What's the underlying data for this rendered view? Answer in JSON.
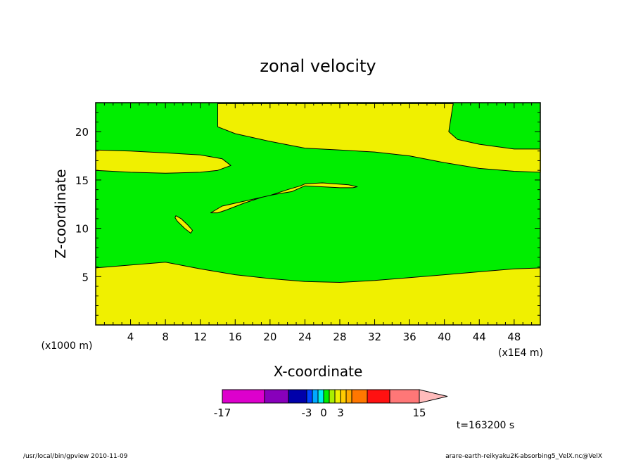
{
  "chart_data": {
    "type": "heatmap",
    "title": "zonal velocity",
    "xlabel": "X-coordinate",
    "ylabel": "Z-coordinate",
    "x_unit_note": "(x1E4 m)",
    "y_unit_note": "(x1000 m)",
    "xlim": [
      0,
      51
    ],
    "ylim": [
      0,
      23
    ],
    "x_ticks": [
      4,
      8,
      12,
      16,
      20,
      24,
      28,
      32,
      36,
      40,
      44,
      48
    ],
    "y_ticks": [
      5,
      10,
      15,
      20
    ],
    "colors": {
      "background_region": "#00ee00",
      "positive_region": "#f0f000",
      "frame": "#000000"
    },
    "regions": [
      {
        "region": "bottom-layer",
        "level": "0 to 3",
        "boundary": [
          [
            0,
            5.9
          ],
          [
            8,
            6.5
          ],
          [
            12,
            5.8
          ],
          [
            16,
            5.2
          ],
          [
            20,
            4.8
          ],
          [
            24,
            4.5
          ],
          [
            28,
            4.4
          ],
          [
            32,
            4.6
          ],
          [
            36,
            4.9
          ],
          [
            40,
            5.2
          ],
          [
            44,
            5.5
          ],
          [
            48,
            5.8
          ],
          [
            51,
            5.9
          ]
        ]
      },
      {
        "region": "left-band",
        "level": "0 to 3",
        "top": [
          [
            0,
            18.1
          ],
          [
            4,
            18.0
          ],
          [
            8,
            17.8
          ],
          [
            12,
            17.6
          ],
          [
            14.5,
            17.2
          ],
          [
            15.5,
            16.5
          ]
        ],
        "bottom": [
          [
            15.5,
            16.5
          ],
          [
            14,
            16.0
          ],
          [
            12,
            15.8
          ],
          [
            8,
            15.7
          ],
          [
            4,
            15.8
          ],
          [
            0,
            16.0
          ]
        ]
      },
      {
        "region": "top-right-layer",
        "boundary": [
          [
            14,
            22.9
          ],
          [
            14,
            20.5
          ],
          [
            16,
            19.8
          ],
          [
            20,
            19.0
          ],
          [
            24,
            18.3
          ],
          [
            28,
            18.1
          ],
          [
            32,
            17.9
          ],
          [
            36,
            17.5
          ],
          [
            40,
            16.8
          ],
          [
            44,
            16.2
          ],
          [
            48,
            15.9
          ],
          [
            51,
            15.8
          ],
          [
            51,
            18.2
          ],
          [
            48,
            18.2
          ],
          [
            44,
            18.7
          ],
          [
            41.5,
            19.2
          ],
          [
            40.5,
            20.0
          ],
          [
            41,
            22.9
          ]
        ]
      },
      {
        "region": "diagonal-streak",
        "boundary": [
          [
            13.2,
            11.6
          ],
          [
            14.5,
            12.3
          ],
          [
            17,
            12.8
          ],
          [
            20,
            13.4
          ],
          [
            22,
            14.0
          ],
          [
            23.5,
            14.4
          ],
          [
            24,
            14.6
          ],
          [
            26,
            14.7
          ],
          [
            29,
            14.5
          ],
          [
            30,
            14.3
          ],
          [
            29.5,
            14.2
          ],
          [
            28,
            14.2
          ],
          [
            24,
            14.4
          ],
          [
            22.5,
            13.8
          ],
          [
            20.5,
            13.5
          ],
          [
            19,
            13.2
          ],
          [
            17,
            12.6
          ],
          [
            15,
            11.9
          ],
          [
            14,
            11.6
          ]
        ]
      },
      {
        "region": "small-oval",
        "boundary": [
          [
            9.2,
            11.3
          ],
          [
            9.8,
            11.0
          ],
          [
            10.5,
            10.4
          ],
          [
            11.1,
            9.8
          ],
          [
            10.9,
            9.5
          ],
          [
            10.2,
            10.0
          ],
          [
            9.4,
            10.7
          ],
          [
            9.1,
            11.1
          ]
        ]
      }
    ],
    "colorbar": {
      "tick_labels": [
        "-17",
        "-3",
        "0",
        "3",
        "15"
      ],
      "segments": [
        {
          "color": "#dd00cc",
          "level": "-17 to -10"
        },
        {
          "color": "#8800bb",
          "level": "-10 to -6"
        },
        {
          "color": "#0000aa",
          "level": "-6 to -3"
        },
        {
          "color": "#0044ff",
          "level": "-3 to -2"
        },
        {
          "color": "#00aaff",
          "level": "-2 to -1"
        },
        {
          "color": "#00eeee",
          "level": "-1 to 0"
        },
        {
          "color": "#00ee00",
          "level": "0 to 1"
        },
        {
          "color": "#aaee00",
          "level": "1 to 2"
        },
        {
          "color": "#f0f000",
          "level": "2 to 3"
        },
        {
          "color": "#ffcc00",
          "level": "3 to 4"
        },
        {
          "color": "#ffaa00",
          "level": "4 to 5"
        },
        {
          "color": "#ff7700",
          "level": "5 to 7"
        },
        {
          "color": "#ff1111",
          "level": "7 to 10"
        },
        {
          "color": "#ff7777",
          "level": "10 to 15"
        },
        {
          "color": "#ffbbbb",
          "level": ">15"
        }
      ]
    },
    "annotations": {
      "time": "t=163200 s",
      "left_footer": "/usr/local/bin/gpview  2010-11-09",
      "right_footer": "arare-earth-reikyaku2K-absorbing5_VelX.nc@VelX"
    }
  }
}
